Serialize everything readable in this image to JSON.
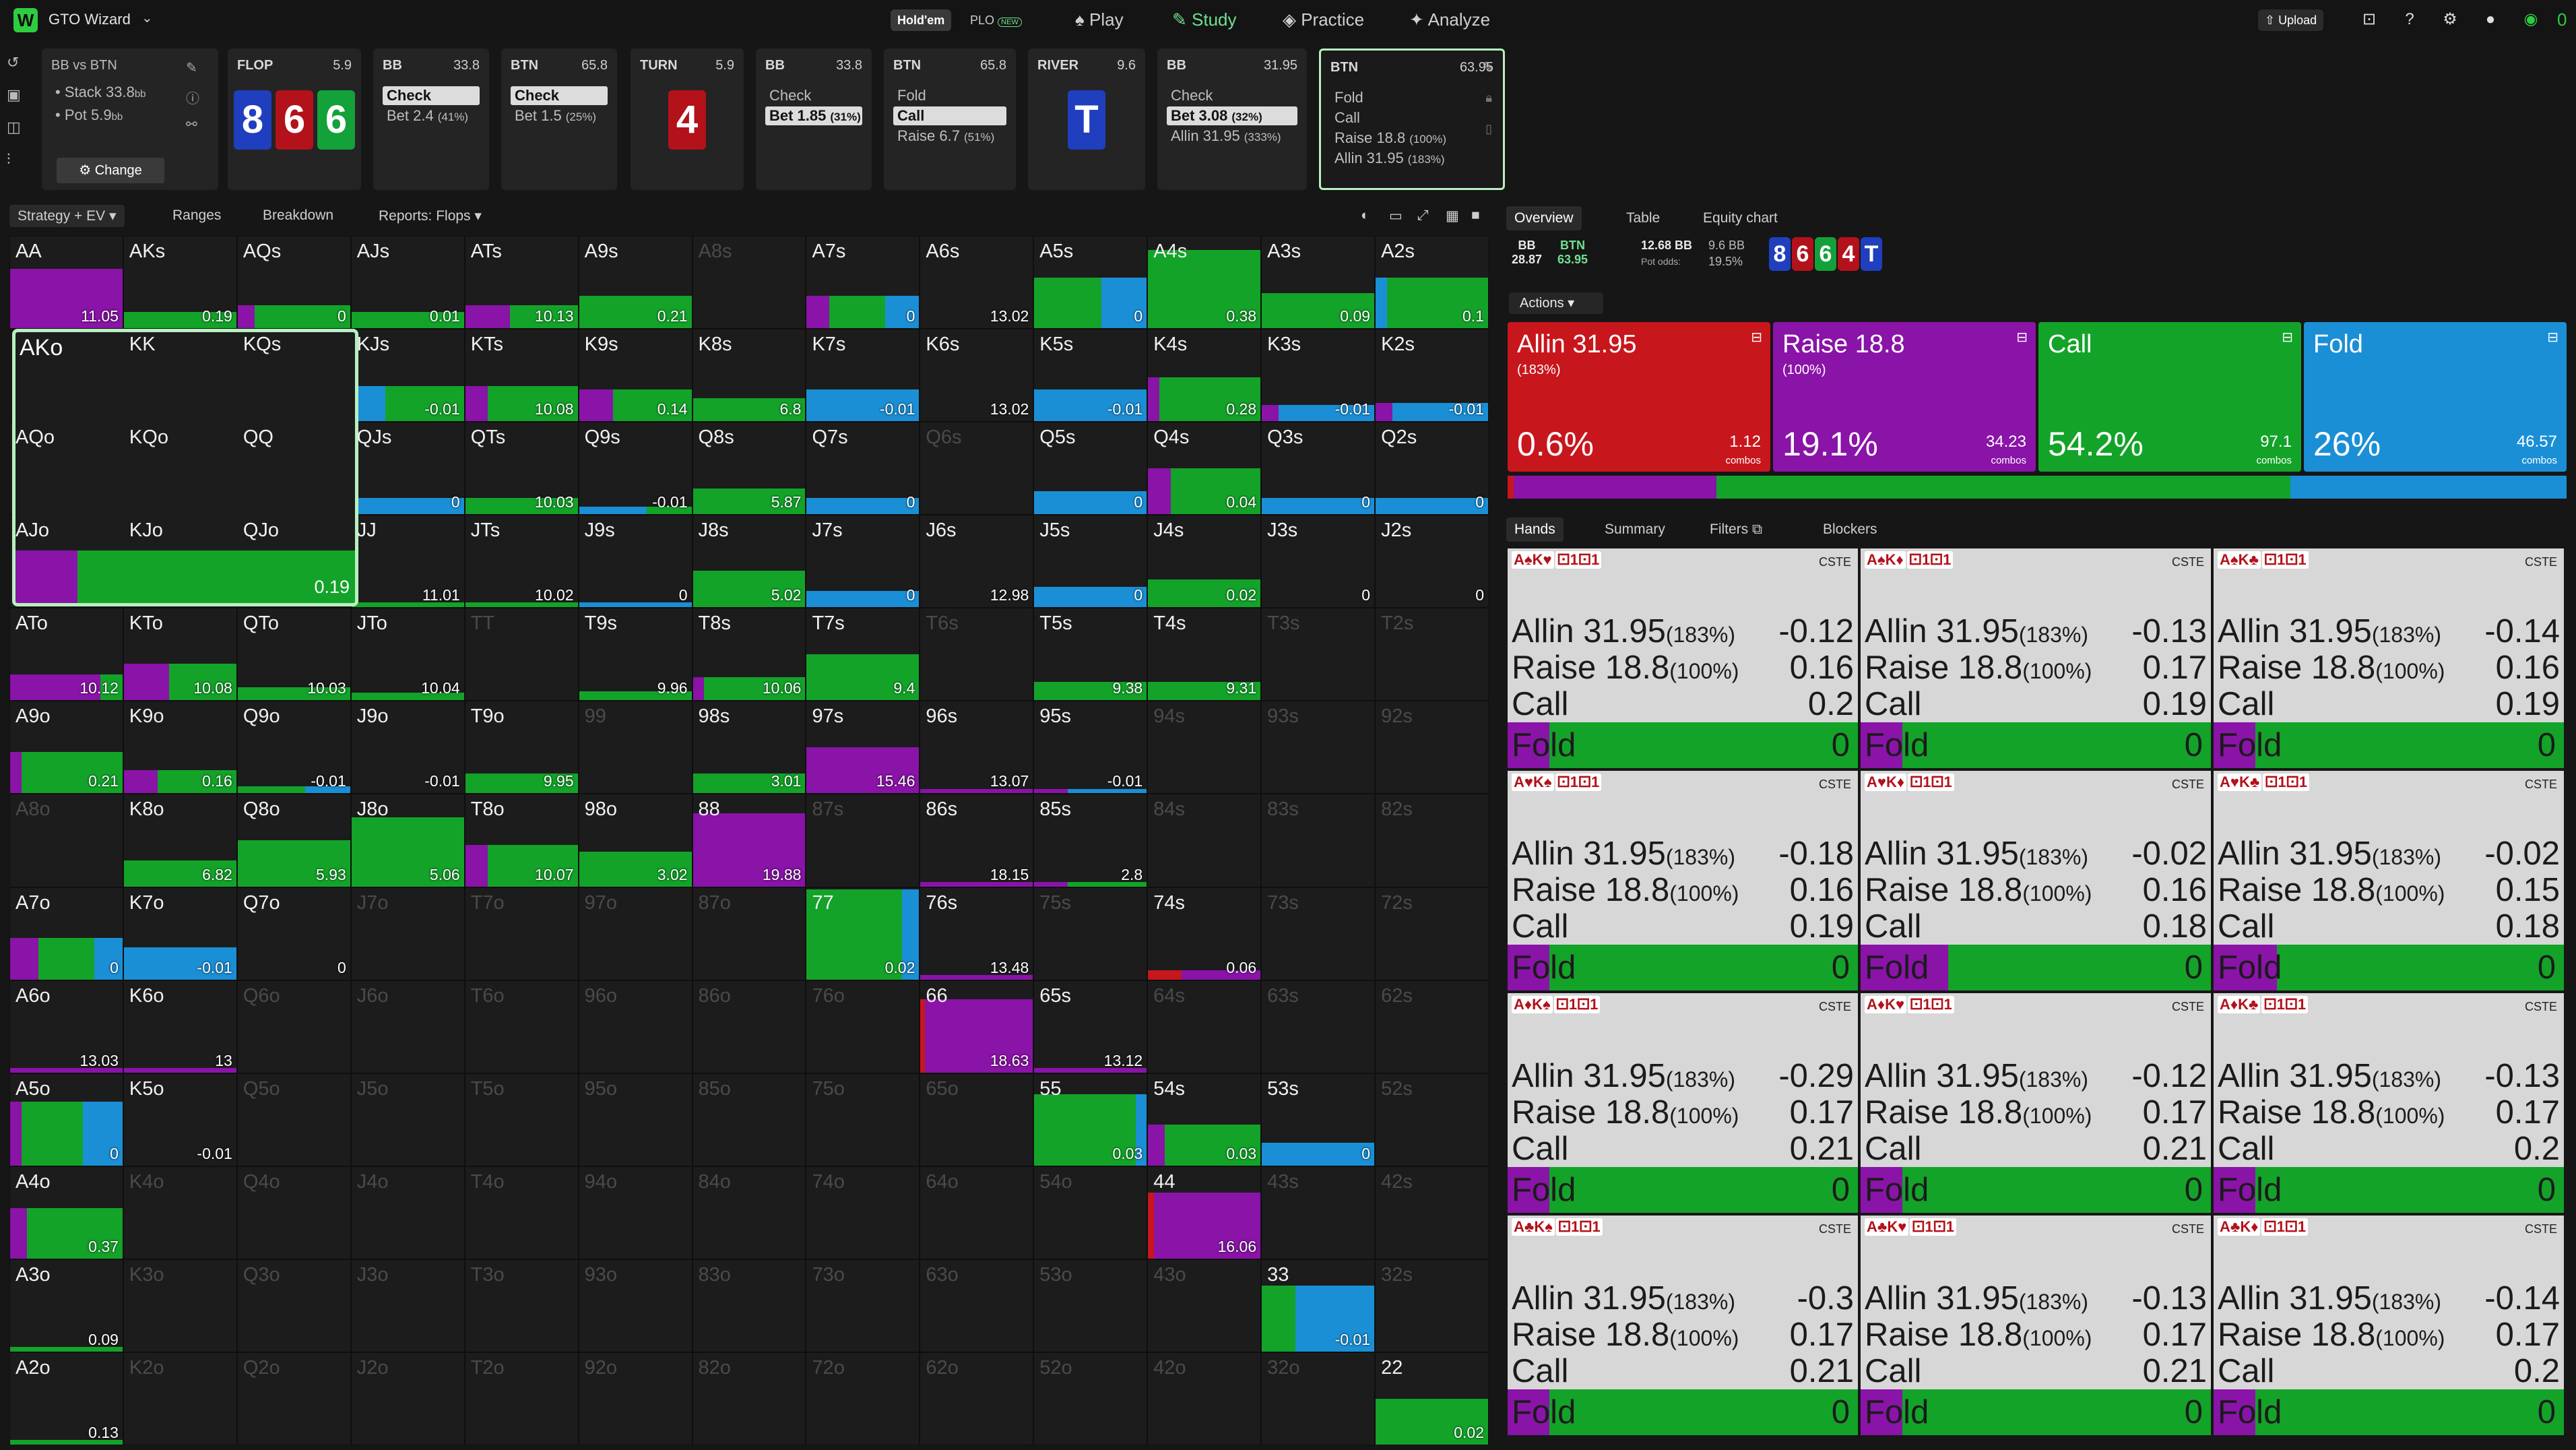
{
  "topbar": {
    "app_name": "GTO Wizard",
    "logo": "W",
    "holdem": "Hold'em",
    "plo": "PLO",
    "plo_badge": "NEW",
    "nav": [
      "Play",
      "Study",
      "Practice",
      "Analyze"
    ],
    "upload": "Upload",
    "coins": "0"
  },
  "spot": {
    "title": "BB vs BTN",
    "stack_label": "Stack",
    "stack_val": "33.8",
    "pot_label": "Pot",
    "pot_val": "5.9",
    "bb_unit": "bb",
    "change": "Change"
  },
  "actions": [
    {
      "head": "FLOP",
      "val": "5.9",
      "type": "cards",
      "cards": [
        [
          "8",
          "spade"
        ],
        [
          "6",
          "heart"
        ],
        [
          "6",
          "club"
        ]
      ]
    },
    {
      "head": "BB",
      "val": "33.8",
      "rows": [
        [
          "Check",
          "",
          true
        ],
        [
          "Bet 2.4",
          "(41%)",
          false
        ]
      ]
    },
    {
      "head": "BTN",
      "val": "65.8",
      "rows": [
        [
          "Check",
          "",
          true
        ],
        [
          "Bet 1.5",
          "(25%)",
          false
        ]
      ]
    },
    {
      "head": "TURN",
      "val": "5.9",
      "type": "cards",
      "cards": [
        [
          "4",
          "heart"
        ]
      ]
    },
    {
      "head": "BB",
      "val": "33.8",
      "rows": [
        [
          "Check",
          "",
          false
        ],
        [
          "Bet 1.85",
          "(31%)",
          true
        ]
      ]
    },
    {
      "head": "BTN",
      "val": "65.8",
      "rows": [
        [
          "Fold",
          "",
          false
        ],
        [
          "Call",
          "",
          true
        ],
        [
          "Raise 6.7",
          "(51%)",
          false
        ]
      ]
    },
    {
      "head": "RIVER",
      "val": "9.6",
      "type": "cards",
      "cards": [
        [
          "T",
          "spade"
        ]
      ]
    },
    {
      "head": "BB",
      "val": "31.95",
      "rows": [
        [
          "Check",
          "",
          false
        ],
        [
          "Bet 3.08",
          "(32%)",
          true
        ],
        [
          "Allin 31.95",
          "(333%)",
          false
        ]
      ]
    },
    {
      "head": "BTN",
      "val": "63.95",
      "rows": [
        [
          "Fold",
          "",
          false
        ],
        [
          "Call",
          "",
          false
        ],
        [
          "Raise 18.8",
          "(100%)",
          false
        ],
        [
          "Allin 31.95",
          "(183%)",
          false
        ]
      ],
      "active": true
    }
  ],
  "grid_tabs": [
    "Strategy + EV",
    "Ranges",
    "Breakdown",
    "Reports: Flops"
  ],
  "grid_labels": [
    [
      "AA",
      "AKs",
      "AQs",
      "AJs",
      "ATs",
      "A9s",
      "A8s",
      "A7s",
      "A6s",
      "A5s",
      "A4s",
      "A3s",
      "A2s"
    ],
    [
      "AKo",
      "KK",
      "KQs",
      "KJs",
      "KTs",
      "K9s",
      "K8s",
      "K7s",
      "K6s",
      "K5s",
      "K4s",
      "K3s",
      "K2s"
    ],
    [
      "AQo",
      "KQo",
      "QQ",
      "QJs",
      "QTs",
      "Q9s",
      "Q8s",
      "Q7s",
      "Q6s",
      "Q5s",
      "Q4s",
      "Q3s",
      "Q2s"
    ],
    [
      "AJo",
      "KJo",
      "QJo",
      "JJ",
      "JTs",
      "J9s",
      "J8s",
      "J7s",
      "J6s",
      "J5s",
      "J4s",
      "J3s",
      "J2s"
    ],
    [
      "ATo",
      "KTo",
      "QTo",
      "JTo",
      "TT",
      "T9s",
      "T8s",
      "T7s",
      "T6s",
      "T5s",
      "T4s",
      "T3s",
      "T2s"
    ],
    [
      "A9o",
      "K9o",
      "Q9o",
      "J9o",
      "T9o",
      "99",
      "98s",
      "97s",
      "96s",
      "95s",
      "94s",
      "93s",
      "92s"
    ],
    [
      "A8o",
      "K8o",
      "Q8o",
      "J8o",
      "T8o",
      "98o",
      "88",
      "87s",
      "86s",
      "85s",
      "84s",
      "83s",
      "82s"
    ],
    [
      "A7o",
      "K7o",
      "Q7o",
      "J7o",
      "T7o",
      "97o",
      "87o",
      "77",
      "76s",
      "75s",
      "74s",
      "73s",
      "72s"
    ],
    [
      "A6o",
      "K6o",
      "Q6o",
      "J6o",
      "T6o",
      "96o",
      "86o",
      "76o",
      "66",
      "65s",
      "64s",
      "63s",
      "62s"
    ],
    [
      "A5o",
      "K5o",
      "Q5o",
      "J5o",
      "T5o",
      "95o",
      "85o",
      "75o",
      "65o",
      "55",
      "54s",
      "53s",
      "52s"
    ],
    [
      "A4o",
      "K4o",
      "Q4o",
      "J4o",
      "T4o",
      "94o",
      "84o",
      "74o",
      "64o",
      "54o",
      "44",
      "43s",
      "42s"
    ],
    [
      "A3o",
      "K3o",
      "Q3o",
      "J3o",
      "T3o",
      "93o",
      "83o",
      "73o",
      "63o",
      "53o",
      "43o",
      "33",
      "32s"
    ],
    [
      "A2o",
      "K2o",
      "Q2o",
      "J2o",
      "T2o",
      "92o",
      "82o",
      "72o",
      "62o",
      "52o",
      "42o",
      "32o",
      "22"
    ]
  ],
  "grid_values": [
    [
      "11.05",
      "0.19",
      "0",
      "0.01",
      "10.13",
      "0.21",
      "",
      "0",
      "13.02",
      "0",
      "0.38",
      "0.09",
      "0.1"
    ],
    [
      "0.19",
      "",
      "",
      "-0.01",
      "10.08",
      "0.14",
      "6.8",
      "-0.01",
      "13.02",
      "-0.01",
      "0.28",
      "-0.01",
      "-0.01"
    ],
    [
      "",
      "",
      "",
      "0",
      "10.03",
      "-0.01",
      "5.87",
      "0",
      "",
      "0",
      "0.04",
      "0",
      "0"
    ],
    [
      "",
      "",
      "",
      "11.01",
      "10.02",
      "0",
      "5.02",
      "0",
      "12.98",
      "0",
      "0.02",
      "0",
      "0"
    ],
    [
      "10.12",
      "10.08",
      "10.03",
      "10.04",
      "",
      "9.96",
      "10.06",
      "9.4",
      "",
      "9.38",
      "9.31",
      "",
      ""
    ],
    [
      "0.21",
      "0.16",
      "-0.01",
      "-0.01",
      "9.95",
      "",
      "3.01",
      "15.46",
      "13.07",
      "-0.01",
      "",
      "",
      ""
    ],
    [
      "",
      "6.82",
      "5.93",
      "5.06",
      "10.07",
      "3.02",
      "19.88",
      "",
      "18.15",
      "2.8",
      "",
      "",
      ""
    ],
    [
      "0",
      "-0.01",
      "0",
      "",
      "",
      "",
      "",
      "0.02",
      "13.48",
      "",
      "0.06",
      "",
      ""
    ],
    [
      "13.03",
      "13",
      "",
      "",
      "",
      "",
      "",
      "",
      "18.63",
      "13.12",
      "",
      "",
      ""
    ],
    [
      "0",
      "-0.01",
      "",
      "",
      "",
      "",
      "",
      "",
      "",
      "0.03",
      "0.03",
      "0",
      ""
    ],
    [
      "0.37",
      "",
      "",
      "",
      "",
      "",
      "",
      "",
      "",
      "",
      "16.06",
      "",
      ""
    ],
    [
      "0.09",
      "",
      "",
      "",
      "",
      "",
      "",
      "",
      "",
      "",
      "",
      "-0.01",
      ""
    ],
    [
      "0.13",
      "",
      "",
      "",
      "",
      "",
      "",
      "",
      "",
      "",
      "",
      "",
      "0.02"
    ]
  ],
  "grid_dim": [
    [
      0,
      0,
      0,
      0,
      0,
      0,
      1,
      0,
      0,
      0,
      0,
      0,
      0
    ],
    [
      0,
      0,
      0,
      0,
      0,
      0,
      0,
      0,
      0,
      0,
      0,
      0,
      0
    ],
    [
      0,
      0,
      0,
      0,
      0,
      0,
      0,
      0,
      1,
      0,
      0,
      0,
      0
    ],
    [
      0,
      0,
      0,
      0,
      0,
      0,
      0,
      0,
      0,
      0,
      0,
      0,
      0
    ],
    [
      0,
      0,
      0,
      0,
      1,
      0,
      0,
      0,
      1,
      0,
      0,
      1,
      1
    ],
    [
      0,
      0,
      0,
      0,
      0,
      1,
      0,
      0,
      0,
      0,
      1,
      1,
      1
    ],
    [
      1,
      0,
      0,
      0,
      0,
      0,
      0,
      1,
      0,
      0,
      1,
      1,
      1
    ],
    [
      0,
      0,
      0,
      1,
      1,
      1,
      1,
      0,
      0,
      1,
      0,
      1,
      1
    ],
    [
      0,
      0,
      1,
      1,
      1,
      1,
      1,
      1,
      0,
      0,
      1,
      1,
      1
    ],
    [
      0,
      0,
      1,
      1,
      1,
      1,
      1,
      1,
      1,
      0,
      0,
      0,
      1
    ],
    [
      0,
      1,
      1,
      1,
      1,
      1,
      1,
      1,
      1,
      1,
      0,
      1,
      1
    ],
    [
      0,
      1,
      1,
      1,
      1,
      1,
      1,
      1,
      1,
      1,
      1,
      0,
      1
    ],
    [
      0,
      1,
      1,
      1,
      1,
      1,
      1,
      1,
      1,
      1,
      1,
      1,
      0
    ]
  ],
  "right_panel": {
    "tabs": [
      "Overview",
      "Table",
      "Equity chart"
    ],
    "bb": "BB",
    "bb_val": "28.87",
    "btn": "BTN",
    "btn_val": "63.95",
    "pot_bb": "12.68 BB",
    "bet_bb": "9.6 BB",
    "pot_odds_label": "Pot odds:",
    "pot_odds": "19.5%",
    "board": [
      [
        "8",
        "spade"
      ],
      [
        "6",
        "heart"
      ],
      [
        "6",
        "club"
      ],
      [
        "4",
        "heart"
      ],
      [
        "T",
        "spade"
      ]
    ],
    "actions_label": "Actions",
    "big_actions": [
      {
        "name": "Allin 31.95",
        "sub": "(183%)",
        "pct": "0.6%",
        "combos": "1.12",
        "color": "#c8161d"
      },
      {
        "name": "Raise 18.8",
        "sub": "(100%)",
        "pct": "19.1%",
        "combos": "34.23",
        "color": "#8a13a8"
      },
      {
        "name": "Call",
        "sub": "",
        "pct": "54.2%",
        "combos": "97.1",
        "color": "#13a329"
      },
      {
        "name": "Fold",
        "sub": "",
        "pct": "26%",
        "combos": "46.57",
        "color": "#1a8fd6"
      }
    ],
    "combos_label": "combos",
    "hand_tabs": [
      "Hands",
      "Summary",
      "Filters",
      "Blockers"
    ]
  },
  "hand_cards": [
    {
      "cards": "A♠K♥",
      "ev": [
        "-0.12",
        "0.16",
        "0.2",
        "0"
      ],
      "fold_purple": 0.12
    },
    {
      "cards": "A♠K♦",
      "ev": [
        "-0.13",
        "0.17",
        "0.19",
        "0"
      ],
      "fold_purple": 0.12
    },
    {
      "cards": "A♠K♣",
      "ev": [
        "-0.14",
        "0.16",
        "0.19",
        "0"
      ],
      "fold_purple": 0.12
    },
    {
      "cards": "A♥K♠",
      "ev": [
        "-0.18",
        "0.16",
        "0.19",
        "0"
      ],
      "fold_purple": 0.12
    },
    {
      "cards": "A♥K♦",
      "ev": [
        "-0.02",
        "0.16",
        "0.18",
        "0"
      ],
      "fold_purple": 0.25
    },
    {
      "cards": "A♥K♣",
      "ev": [
        "-0.02",
        "0.15",
        "0.18",
        "0"
      ],
      "fold_purple": 0.18
    },
    {
      "cards": "A♦K♠",
      "ev": [
        "-0.29",
        "0.17",
        "0.21",
        "0"
      ],
      "fold_purple": 0.12
    },
    {
      "cards": "A♦K♥",
      "ev": [
        "-0.12",
        "0.17",
        "0.21",
        "0"
      ],
      "fold_purple": 0.12
    },
    {
      "cards": "A♦K♣",
      "ev": [
        "-0.13",
        "0.17",
        "0.2",
        "0"
      ],
      "fold_purple": 0.12
    },
    {
      "cards": "A♣K♠",
      "ev": [
        "-0.3",
        "0.17",
        "0.21",
        "0"
      ],
      "fold_purple": 0.12
    },
    {
      "cards": "A♣K♥",
      "ev": [
        "-0.13",
        "0.17",
        "0.21",
        "0"
      ],
      "fold_purple": 0.12
    },
    {
      "cards": "A♣K♦",
      "ev": [
        "-0.14",
        "0.17",
        "0.2",
        "0"
      ],
      "fold_purple": 0.12
    }
  ],
  "hand_meta": {
    "cste": "CSTE",
    "labels": [
      "Allin 31.95",
      "Raise 18.8",
      "Call",
      "Fold"
    ],
    "subs": [
      "(183%)",
      "(100%)",
      "",
      ""
    ]
  }
}
